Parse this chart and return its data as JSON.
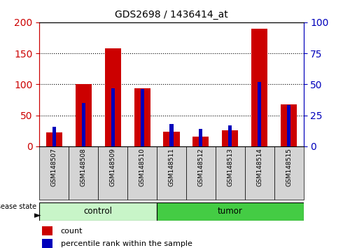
{
  "title": "GDS2698 / 1436414_at",
  "samples": [
    "GSM148507",
    "GSM148508",
    "GSM148509",
    "GSM148510",
    "GSM148511",
    "GSM148512",
    "GSM148513",
    "GSM148514",
    "GSM148515"
  ],
  "count_values": [
    22,
    100,
    158,
    94,
    24,
    16,
    26,
    190,
    68
  ],
  "percentile_values": [
    16,
    35,
    47,
    46,
    18,
    14,
    17,
    52,
    33
  ],
  "left_ylim": [
    0,
    200
  ],
  "right_ylim": [
    0,
    100
  ],
  "left_yticks": [
    0,
    50,
    100,
    150,
    200
  ],
  "right_yticks": [
    0,
    25,
    50,
    75,
    100
  ],
  "left_color": "#CC0000",
  "right_color": "#0000BB",
  "red_bar_width": 0.55,
  "blue_bar_width": 0.12,
  "disease_state_label": "disease state",
  "legend_count": "count",
  "legend_percentile": "percentile rank within the sample",
  "bg_color": "#ffffff",
  "ctrl_color": "#c8f5c8",
  "tumor_color": "#44cc44",
  "n_control": 4,
  "n_total": 9
}
